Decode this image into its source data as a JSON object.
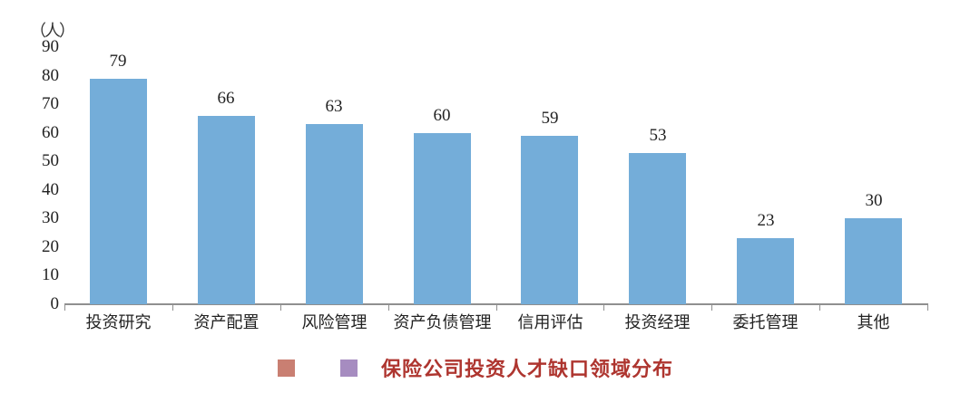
{
  "chart_data": {
    "type": "bar",
    "title": "保险公司投资人才缺口领域分布",
    "xlabel": "",
    "ylabel": "（人）",
    "categories": [
      "投资研究",
      "资产配置",
      "风险管理",
      "资产负债管理",
      "信用评估",
      "投资经理",
      "委托管理",
      "其他"
    ],
    "values": [
      79,
      66,
      63,
      60,
      59,
      53,
      23,
      30
    ],
    "ylim": [
      0,
      90
    ],
    "ytick_step": 10,
    "yticks": [
      0,
      10,
      20,
      30,
      40,
      50,
      60,
      70,
      80,
      90
    ],
    "bar_color": "#74add9",
    "grid": false,
    "legend_position": "bottom",
    "value_labels_shown": true
  },
  "legend": {
    "label": "保险公司投资人才缺口领域分布",
    "label_color": "#ae352f",
    "swatches": [
      {
        "name": "red-square",
        "color": "#c97f72"
      },
      {
        "name": "purple-square",
        "color": "#a68cc0"
      }
    ]
  },
  "colors": {
    "axis": "#8f8f8f",
    "bar": "#74add9",
    "text": "#222222"
  }
}
